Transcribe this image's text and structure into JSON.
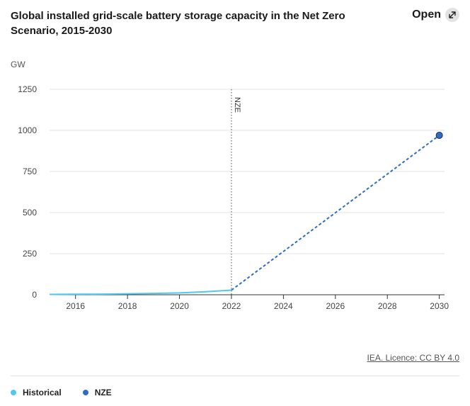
{
  "header": {
    "title": "Global installed grid-scale battery storage capacity in the Net Zero Scenario, 2015-2030",
    "open_label": "Open",
    "open_icon": "expand-arrow-icon"
  },
  "footer": {
    "source_link": "IEA. Licence: CC BY 4.0"
  },
  "chart_data": {
    "type": "line",
    "title": "Global installed grid-scale battery storage capacity in the Net Zero Scenario, 2015-2030",
    "ylabel": "GW",
    "xlabel": "",
    "xlim": [
      2015,
      2030.2
    ],
    "ylim": [
      0,
      1250
    ],
    "x_ticks": [
      2016,
      2018,
      2020,
      2022,
      2024,
      2026,
      2028,
      2030
    ],
    "y_ticks": [
      0,
      250,
      500,
      750,
      1000,
      1250
    ],
    "grid": true,
    "legend_position": "bottom-left",
    "annotation": {
      "label": "NZE",
      "x": 2022
    },
    "series": [
      {
        "name": "Historical",
        "color": "#4cc8f4",
        "style": "solid",
        "points": [
          [
            2015,
            2
          ],
          [
            2016,
            3
          ],
          [
            2017,
            4
          ],
          [
            2018,
            6
          ],
          [
            2019,
            8
          ],
          [
            2020,
            11
          ],
          [
            2021,
            18
          ],
          [
            2022,
            28
          ]
        ]
      },
      {
        "name": "NZE",
        "color": "#2f6dc4",
        "style": "dashed",
        "points": [
          [
            2022,
            28
          ],
          [
            2030,
            970
          ]
        ],
        "end_marker": true
      }
    ]
  }
}
